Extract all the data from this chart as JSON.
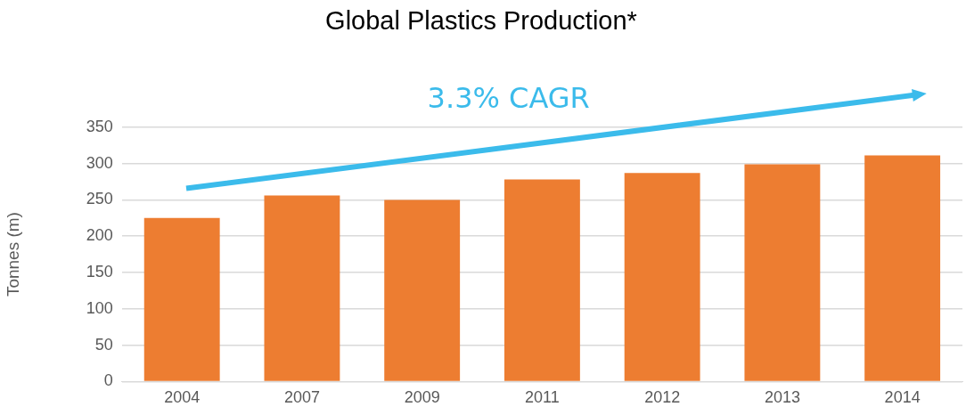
{
  "chart_data": {
    "type": "bar",
    "title": "Global Plastics Production*",
    "ylabel": "Tonnes (m)",
    "categories": [
      "2004",
      "2007",
      "2009",
      "2011",
      "2012",
      "2013",
      "2014"
    ],
    "values": [
      225,
      256,
      250,
      278,
      287,
      299,
      311
    ],
    "color": "#ed7d31",
    "ylim": [
      0,
      350
    ],
    "yticks": [
      0,
      50,
      100,
      150,
      200,
      250,
      300,
      350
    ],
    "grid": "y",
    "annotations": [
      "3.3% CAGR"
    ]
  }
}
